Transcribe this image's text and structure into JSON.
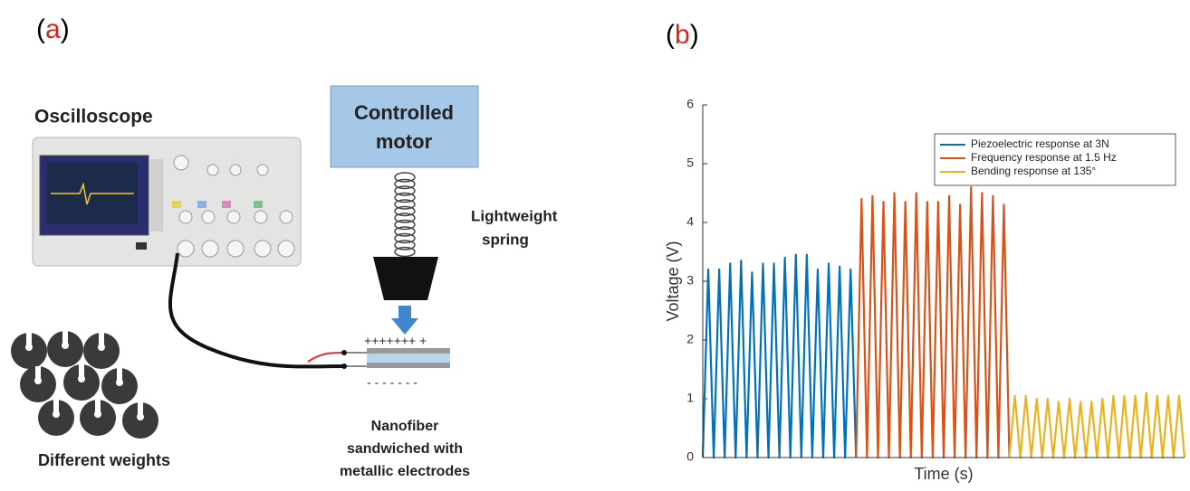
{
  "panel_a": {
    "open": "(",
    "letter": "a",
    "close": ")"
  },
  "panel_b": {
    "open": "(",
    "letter": "b",
    "close": ")"
  },
  "diagram": {
    "oscilloscope": "Oscilloscope",
    "motor": [
      "Controlled",
      "motor"
    ],
    "spring": [
      "Lightweight",
      "spring"
    ],
    "plus": "+++++++ +",
    "minus": "- - - - - - -",
    "nanofiber": [
      "Nanofiber",
      "sandwiched with",
      "metallic electrodes"
    ],
    "weights": "Different weights"
  },
  "chart_data": {
    "type": "line",
    "xlabel": "Time (s)",
    "ylabel": "Voltage (V)",
    "xlim": [
      0,
      88
    ],
    "ylim": [
      0,
      6
    ],
    "yticks": [
      0,
      1,
      2,
      3,
      4,
      5,
      6
    ],
    "legend": "upper right",
    "series": [
      {
        "name": "Piezoelectric response at 3N",
        "color": "#0072bd",
        "values": [
          0,
          3.2,
          0,
          3.2,
          0,
          3.3,
          0,
          3.35,
          0,
          3.15,
          0,
          3.3,
          0,
          3.3,
          0,
          3.4,
          0,
          3.45,
          0,
          3.45,
          0,
          3.2,
          0,
          3.3,
          0,
          3.25,
          0,
          3.2,
          0,
          null,
          null,
          null,
          null,
          null,
          null,
          null,
          null,
          null,
          null,
          null,
          null,
          null,
          null,
          null,
          null,
          null,
          null,
          null,
          null,
          null,
          null,
          null,
          null,
          null,
          null,
          null,
          null,
          null,
          null,
          null,
          null,
          null,
          null,
          null,
          null,
          null,
          null,
          null,
          null,
          null,
          null,
          null,
          null,
          null,
          null,
          null,
          null,
          null,
          null,
          null,
          null,
          null,
          null,
          null,
          null,
          null,
          null,
          null,
          null
        ]
      },
      {
        "name": "Frequency response at 1.5 Hz",
        "color": "#d95319",
        "values": [
          null,
          null,
          null,
          null,
          null,
          null,
          null,
          null,
          null,
          null,
          null,
          null,
          null,
          null,
          null,
          null,
          null,
          null,
          null,
          null,
          null,
          null,
          null,
          null,
          null,
          null,
          null,
          null,
          0,
          4.4,
          0,
          4.45,
          0,
          4.35,
          0,
          4.5,
          0,
          4.35,
          0,
          4.5,
          0,
          4.35,
          0,
          4.35,
          0,
          4.45,
          0,
          4.3,
          0,
          4.6,
          0,
          4.5,
          0,
          4.45,
          0,
          4.3,
          0,
          null,
          null,
          null,
          null,
          null,
          null,
          null,
          null,
          null,
          null,
          null,
          null,
          null,
          null,
          null,
          null,
          null,
          null,
          null,
          null,
          null,
          null,
          null,
          null,
          null,
          null,
          null,
          null,
          null,
          null,
          null,
          null
        ]
      },
      {
        "name": "Bending response at 135°",
        "color": "#edb120",
        "values": [
          null,
          null,
          null,
          null,
          null,
          null,
          null,
          null,
          null,
          null,
          null,
          null,
          null,
          null,
          null,
          null,
          null,
          null,
          null,
          null,
          null,
          null,
          null,
          null,
          null,
          null,
          null,
          null,
          null,
          null,
          null,
          null,
          null,
          null,
          null,
          null,
          null,
          null,
          null,
          null,
          null,
          null,
          null,
          null,
          null,
          null,
          null,
          null,
          null,
          null,
          null,
          null,
          null,
          null,
          null,
          null,
          0,
          1.05,
          0,
          1.05,
          0,
          1,
          0,
          1,
          0,
          0.95,
          0,
          1,
          0,
          0.95,
          0,
          0.95,
          0,
          1,
          0,
          1.05,
          0,
          1.05,
          0,
          1.05,
          0,
          1.1,
          0,
          1.05,
          0,
          1.05,
          0,
          1.05,
          0
        ]
      }
    ]
  }
}
